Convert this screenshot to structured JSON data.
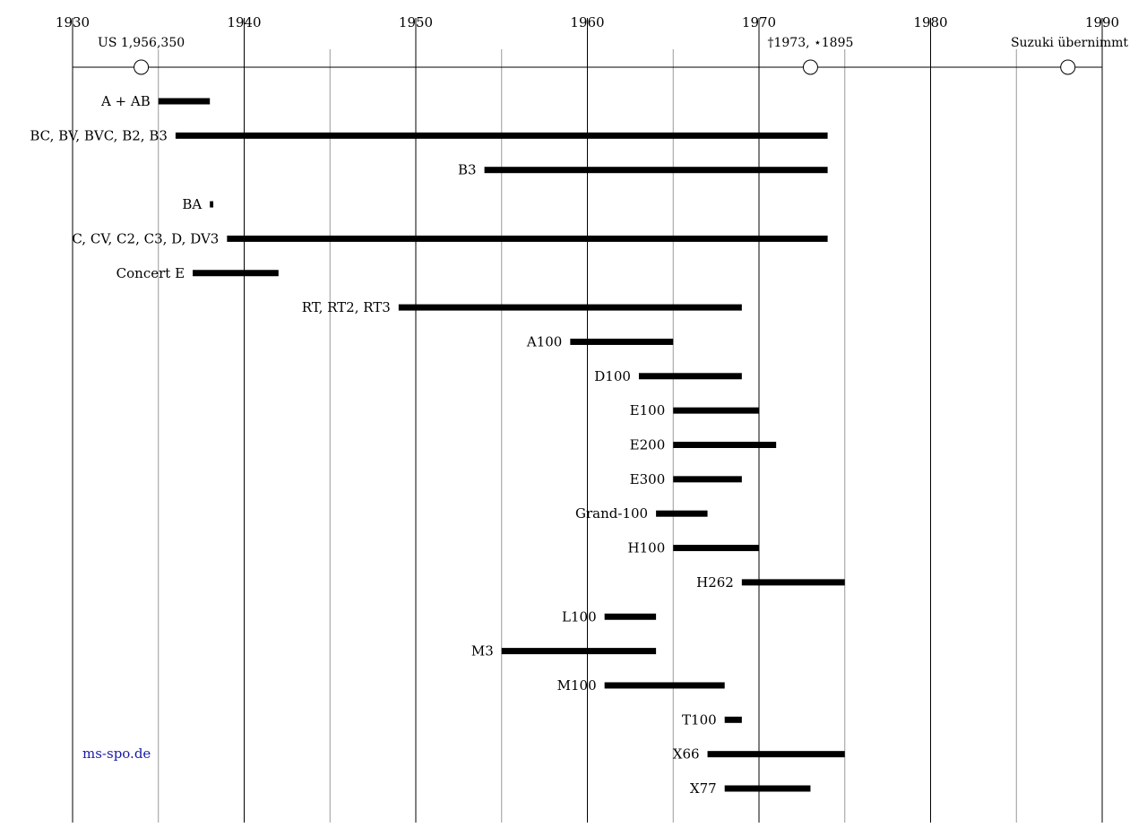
{
  "chart_data": {
    "type": "bar",
    "orientation": "horizontal",
    "x_ticks": [
      1930,
      1940,
      1950,
      1960,
      1970,
      1980,
      1990
    ],
    "minor_ticks": [
      1935,
      1945,
      1955,
      1965,
      1975,
      1985
    ],
    "xlim": [
      1930,
      1990
    ],
    "grid": true,
    "events": [
      {
        "label": "US 1,956,350",
        "year": 1934
      },
      {
        "label": "†1973, ⋆1895",
        "year": 1973
      },
      {
        "label": "Suzuki übernimmt",
        "year": 1988
      }
    ],
    "bars": [
      {
        "label": "A + AB",
        "start": 1935,
        "end": 1938
      },
      {
        "label": "BC, BV, BVC, B2, B3",
        "start": 1936,
        "end": 1974
      },
      {
        "label": "B3",
        "start": 1954,
        "end": 1974
      },
      {
        "label": "BA",
        "start": 1938,
        "end": 1938.2
      },
      {
        "label": "C, CV, C2, C3, D, DV3",
        "start": 1939,
        "end": 1974
      },
      {
        "label": "Concert E",
        "start": 1937,
        "end": 1942
      },
      {
        "label": "RT, RT2, RT3",
        "start": 1949,
        "end": 1969
      },
      {
        "label": "A100",
        "start": 1959,
        "end": 1965
      },
      {
        "label": "D100",
        "start": 1963,
        "end": 1969
      },
      {
        "label": "E100",
        "start": 1965,
        "end": 1970
      },
      {
        "label": "E200",
        "start": 1965,
        "end": 1971
      },
      {
        "label": "E300",
        "start": 1965,
        "end": 1969
      },
      {
        "label": "Grand-100",
        "start": 1964,
        "end": 1967
      },
      {
        "label": "H100",
        "start": 1965,
        "end": 1970
      },
      {
        "label": "H262",
        "start": 1969,
        "end": 1975
      },
      {
        "label": "L100",
        "start": 1961,
        "end": 1964
      },
      {
        "label": "M3",
        "start": 1955,
        "end": 1964
      },
      {
        "label": "M100",
        "start": 1961,
        "end": 1968
      },
      {
        "label": "T100",
        "start": 1968,
        "end": 1969
      },
      {
        "label": "X66",
        "start": 1967,
        "end": 1975
      },
      {
        "label": "X77",
        "start": 1968,
        "end": 1973
      }
    ]
  },
  "watermark": "ms-spo.de",
  "colors": {
    "bar": "#000000",
    "major_grid": "#000000",
    "minor_grid": "#999999",
    "watermark": "#1a1aa6"
  }
}
